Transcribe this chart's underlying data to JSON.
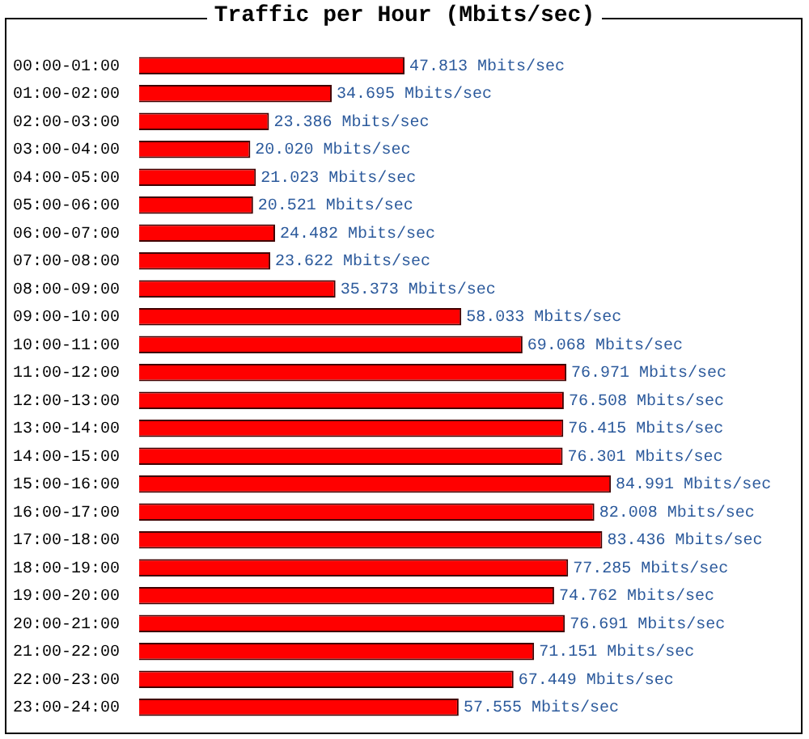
{
  "chart_data": {
    "type": "bar",
    "orientation": "horizontal",
    "title": "Traffic per Hour (Mbits/sec)",
    "categories": [
      "00:00-01:00",
      "01:00-02:00",
      "02:00-03:00",
      "03:00-04:00",
      "04:00-05:00",
      "05:00-06:00",
      "06:00-07:00",
      "07:00-08:00",
      "08:00-09:00",
      "09:00-10:00",
      "10:00-11:00",
      "11:00-12:00",
      "12:00-13:00",
      "13:00-14:00",
      "14:00-15:00",
      "15:00-16:00",
      "16:00-17:00",
      "17:00-18:00",
      "18:00-19:00",
      "19:00-20:00",
      "20:00-21:00",
      "21:00-22:00",
      "22:00-23:00",
      "23:00-24:00"
    ],
    "values": [
      47.813,
      34.695,
      23.386,
      20.02,
      21.023,
      20.521,
      24.482,
      23.622,
      35.373,
      58.033,
      69.068,
      76.971,
      76.508,
      76.415,
      76.301,
      84.991,
      82.008,
      83.436,
      77.285,
      74.762,
      76.691,
      71.151,
      67.449,
      57.555
    ],
    "value_labels": [
      "47.813 Mbits/sec",
      "34.695 Mbits/sec",
      "23.386 Mbits/sec",
      "20.020 Mbits/sec",
      "21.023 Mbits/sec",
      "20.521 Mbits/sec",
      "24.482 Mbits/sec",
      "23.622 Mbits/sec",
      "35.373 Mbits/sec",
      "58.033 Mbits/sec",
      "69.068 Mbits/sec",
      "76.971 Mbits/sec",
      "76.508 Mbits/sec",
      "76.415 Mbits/sec",
      "76.301 Mbits/sec",
      "84.991 Mbits/sec",
      "82.008 Mbits/sec",
      "83.436 Mbits/sec",
      "77.285 Mbits/sec",
      "74.762 Mbits/sec",
      "76.691 Mbits/sec",
      "71.151 Mbits/sec",
      "67.449 Mbits/sec",
      "57.555 Mbits/sec"
    ],
    "color": "#ff0000",
    "tick_labels": "y",
    "grid": false,
    "legend": false
  }
}
